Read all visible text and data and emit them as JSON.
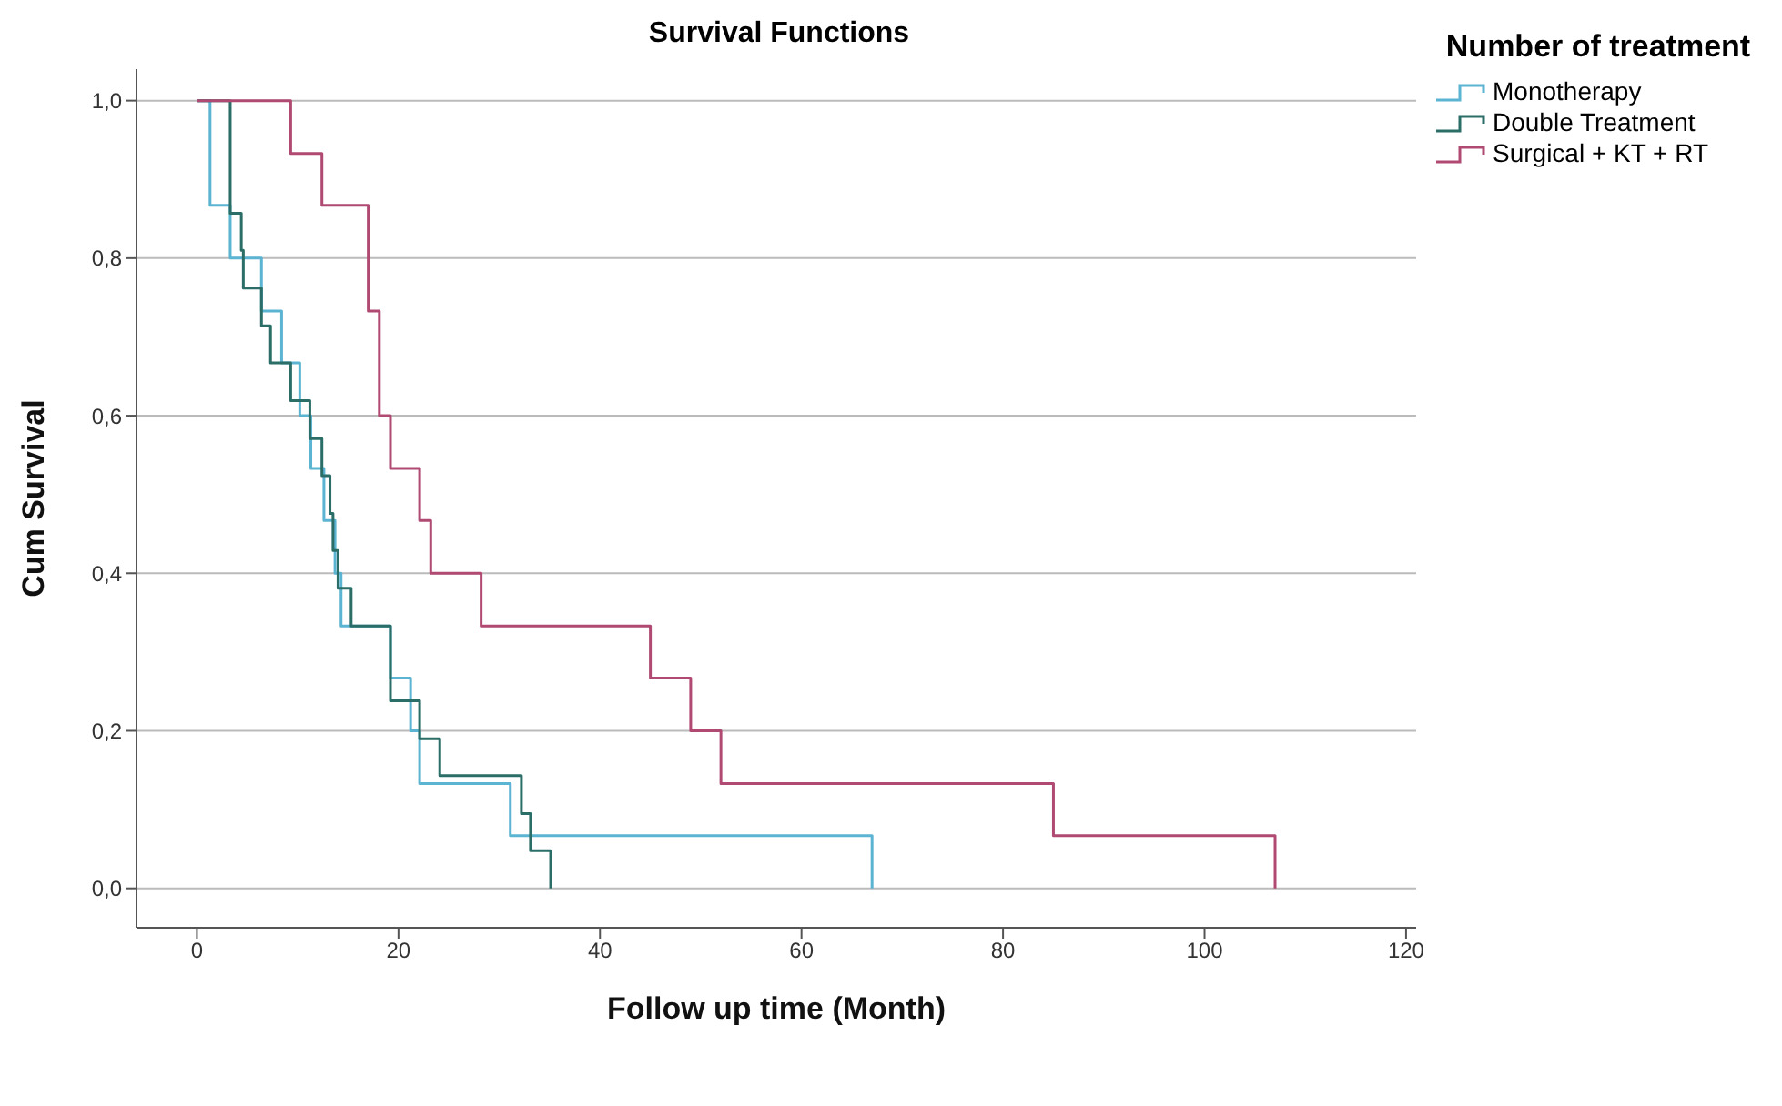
{
  "chart_data": {
    "type": "step",
    "title": "Survival Functions",
    "xlabel": "Follow up time (Month)",
    "ylabel": "Cum Survival",
    "legend_title": "Number of treatment",
    "legend": "top right",
    "grid": "y",
    "xlim": [
      -6,
      121
    ],
    "xticks": [
      0,
      20,
      40,
      60,
      80,
      100,
      120
    ],
    "ylim": [
      -0.05,
      1.04
    ],
    "yticks": [
      {
        "value": 0,
        "label": "0,0"
      },
      {
        "value": 0.2,
        "label": "0,2"
      },
      {
        "value": 0.4,
        "label": "0,4"
      },
      {
        "value": 0.6,
        "label": "0,6"
      },
      {
        "value": 0.8,
        "label": "0,8"
      },
      {
        "value": 1,
        "label": "1,0"
      }
    ],
    "series": [
      {
        "name": "Monotherapy",
        "color": "#5bb4d2",
        "x": [
          0,
          1.3,
          3.3,
          6.4,
          8.4,
          10.2,
          11.3,
          12.6,
          13.7,
          14.3,
          19.2,
          21.2,
          22.1,
          31.1,
          67,
          67
        ],
        "values": [
          1,
          0.867,
          0.8,
          0.733,
          0.667,
          0.6,
          0.533,
          0.467,
          0.4,
          0.333,
          0.267,
          0.2,
          0.133,
          0.067,
          0,
          0
        ]
      },
      {
        "name": "Double Treatment",
        "color": "#2b6e68",
        "x": [
          0,
          3.3,
          4.4,
          4.6,
          6.4,
          7.3,
          9.3,
          11.2,
          12.4,
          13.2,
          13.5,
          14,
          15.3,
          19.2,
          22.1,
          24.1,
          32.2,
          33.1,
          35.1,
          35.1
        ],
        "values": [
          1,
          0.857,
          0.81,
          0.762,
          0.714,
          0.667,
          0.619,
          0.571,
          0.524,
          0.476,
          0.429,
          0.381,
          0.333,
          0.238,
          0.19,
          0.143,
          0.095,
          0.048,
          0,
          0
        ]
      },
      {
        "name": "Surgical + KT + RT",
        "color": "#b04a72",
        "x": [
          0,
          9.3,
          12.4,
          17,
          18.1,
          19.2,
          22.1,
          23.2,
          28.2,
          45,
          49,
          52,
          85,
          107,
          107
        ],
        "values": [
          1,
          0.933,
          0.867,
          0.733,
          0.6,
          0.533,
          0.467,
          0.4,
          0.333,
          0.267,
          0.2,
          0.133,
          0.067,
          0,
          0
        ]
      }
    ]
  }
}
